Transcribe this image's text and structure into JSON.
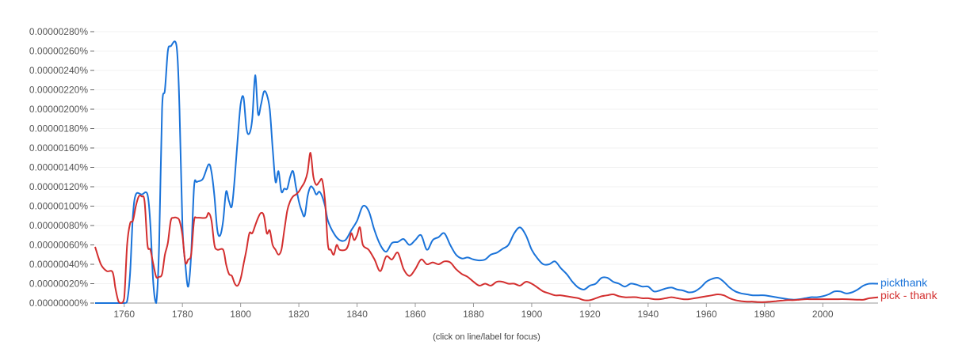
{
  "chart_data": {
    "type": "line",
    "title": "",
    "xlabel": "",
    "ylabel": "",
    "note": "(click on line/label for focus)",
    "xlim": [
      1750,
      2019
    ],
    "ylim": [
      0,
      2.8
    ],
    "y_value_unit_multiplier_percent": 1e-06,
    "grid": true,
    "legend_placement": "right, at line ends",
    "x_ticks": [
      1760,
      1780,
      1800,
      1820,
      1840,
      1860,
      1880,
      1900,
      1920,
      1940,
      1960,
      1980,
      2000
    ],
    "y_ticks": [
      0,
      0.2,
      0.4,
      0.6,
      0.8,
      1.0,
      1.2,
      1.4,
      1.6,
      1.8,
      2.0,
      2.2,
      2.4,
      2.6,
      2.8
    ],
    "y_tick_labels": [
      "0.00000000%",
      "0.00000020%",
      "0.00000040%",
      "0.00000060%",
      "0.00000080%",
      "0.00000100%",
      "0.00000120%",
      "0.00000140%",
      "0.00000160%",
      "0.00000180%",
      "0.00000200%",
      "0.00000220%",
      "0.00000240%",
      "0.00000260%",
      "0.00000280%"
    ],
    "series": [
      {
        "name": "pickthank",
        "color": "#1a73d9",
        "x": [
          1750,
          1755,
          1760,
          1761,
          1762,
          1763,
          1764,
          1766,
          1768,
          1769,
          1770,
          1771,
          1772,
          1773,
          1774,
          1775,
          1776,
          1778,
          1779,
          1780,
          1781,
          1782,
          1783,
          1784,
          1785,
          1787,
          1789,
          1790,
          1791,
          1792,
          1793,
          1794,
          1795,
          1796,
          1797,
          1798,
          1799,
          1800,
          1801,
          1802,
          1803,
          1804,
          1805,
          1806,
          1807,
          1808,
          1809,
          1810,
          1811,
          1812,
          1813,
          1814,
          1815,
          1816,
          1817,
          1818,
          1819,
          1820,
          1821,
          1822,
          1823,
          1824,
          1825,
          1826,
          1827,
          1828,
          1829,
          1830,
          1832,
          1834,
          1836,
          1838,
          1840,
          1842,
          1844,
          1846,
          1848,
          1850,
          1852,
          1854,
          1856,
          1858,
          1860,
          1862,
          1864,
          1866,
          1868,
          1870,
          1872,
          1874,
          1876,
          1878,
          1880,
          1882,
          1884,
          1886,
          1888,
          1890,
          1892,
          1894,
          1896,
          1898,
          1900,
          1902,
          1904,
          1906,
          1908,
          1910,
          1912,
          1914,
          1916,
          1918,
          1920,
          1922,
          1924,
          1926,
          1928,
          1930,
          1932,
          1934,
          1936,
          1938,
          1940,
          1942,
          1944,
          1946,
          1948,
          1950,
          1952,
          1954,
          1956,
          1958,
          1960,
          1962,
          1964,
          1966,
          1968,
          1970,
          1972,
          1974,
          1976,
          1978,
          1980,
          1982,
          1984,
          1986,
          1988,
          1990,
          1992,
          1994,
          1996,
          1998,
          2000,
          2002,
          2004,
          2006,
          2008,
          2010,
          2012,
          2014,
          2016,
          2019
        ],
        "values": [
          0,
          0,
          0,
          0.02,
          0.3,
          0.9,
          1.12,
          1.12,
          1.12,
          0.8,
          0.2,
          0,
          0.6,
          2.0,
          2.2,
          2.6,
          2.65,
          2.65,
          2.0,
          0.8,
          0.4,
          0.17,
          0.5,
          1.2,
          1.25,
          1.28,
          1.43,
          1.35,
          1.1,
          0.75,
          0.7,
          0.85,
          1.15,
          1.05,
          1.0,
          1.3,
          1.7,
          2.05,
          2.12,
          1.8,
          1.75,
          1.9,
          2.35,
          1.95,
          2.05,
          2.18,
          2.15,
          2.0,
          1.6,
          1.25,
          1.36,
          1.15,
          1.18,
          1.18,
          1.3,
          1.36,
          1.2,
          1.05,
          0.95,
          0.9,
          1.1,
          1.2,
          1.18,
          1.12,
          1.15,
          1.1,
          1.0,
          0.85,
          0.72,
          0.65,
          0.65,
          0.75,
          0.85,
          1.0,
          0.95,
          0.75,
          0.6,
          0.53,
          0.62,
          0.63,
          0.66,
          0.6,
          0.65,
          0.7,
          0.55,
          0.65,
          0.68,
          0.72,
          0.6,
          0.5,
          0.46,
          0.47,
          0.45,
          0.44,
          0.45,
          0.5,
          0.52,
          0.56,
          0.6,
          0.72,
          0.78,
          0.7,
          0.55,
          0.46,
          0.4,
          0.4,
          0.43,
          0.36,
          0.3,
          0.22,
          0.16,
          0.14,
          0.18,
          0.2,
          0.26,
          0.26,
          0.22,
          0.2,
          0.17,
          0.2,
          0.19,
          0.17,
          0.17,
          0.12,
          0.13,
          0.15,
          0.16,
          0.14,
          0.13,
          0.11,
          0.12,
          0.16,
          0.22,
          0.25,
          0.26,
          0.22,
          0.16,
          0.12,
          0.1,
          0.09,
          0.08,
          0.08,
          0.08,
          0.07,
          0.06,
          0.05,
          0.04,
          0.035,
          0.04,
          0.05,
          0.06,
          0.06,
          0.07,
          0.09,
          0.12,
          0.12,
          0.1,
          0.11,
          0.14,
          0.18,
          0.2,
          0.2
        ]
      },
      {
        "name": "pick - thank",
        "color": "#d32f2f",
        "x": [
          1750,
          1752,
          1754,
          1756,
          1757,
          1758,
          1759,
          1760,
          1761,
          1762,
          1763,
          1764,
          1765,
          1766,
          1767,
          1768,
          1769,
          1770,
          1771,
          1772,
          1773,
          1774,
          1775,
          1776,
          1777,
          1778,
          1779,
          1780,
          1781,
          1782,
          1783,
          1784,
          1785,
          1788,
          1789,
          1790,
          1791,
          1792,
          1794,
          1795,
          1796,
          1797,
          1798,
          1799,
          1800,
          1801,
          1802,
          1803,
          1804,
          1805,
          1806,
          1807,
          1808,
          1809,
          1810,
          1811,
          1812,
          1813,
          1814,
          1815,
          1816,
          1817,
          1818,
          1819,
          1820,
          1821,
          1822,
          1823,
          1824,
          1825,
          1826,
          1827,
          1828,
          1829,
          1830,
          1831,
          1832,
          1833,
          1834,
          1836,
          1837,
          1838,
          1839,
          1840,
          1841,
          1842,
          1844,
          1846,
          1848,
          1850,
          1852,
          1854,
          1856,
          1858,
          1860,
          1862,
          1864,
          1866,
          1868,
          1870,
          1872,
          1874,
          1876,
          1878,
          1880,
          1882,
          1884,
          1886,
          1888,
          1890,
          1892,
          1894,
          1896,
          1898,
          1900,
          1902,
          1904,
          1906,
          1908,
          1910,
          1912,
          1914,
          1916,
          1918,
          1920,
          1922,
          1924,
          1926,
          1928,
          1930,
          1932,
          1934,
          1936,
          1938,
          1940,
          1942,
          1944,
          1946,
          1948,
          1950,
          1952,
          1954,
          1956,
          1958,
          1960,
          1962,
          1964,
          1966,
          1968,
          1970,
          1972,
          1974,
          1976,
          1978,
          1980,
          1982,
          1984,
          1986,
          1988,
          1990,
          1992,
          1994,
          1996,
          1998,
          2000,
          2004,
          2008,
          2012,
          2014,
          2016,
          2019
        ],
        "values": [
          0.58,
          0.4,
          0.33,
          0.32,
          0.15,
          0.02,
          0,
          0.05,
          0.6,
          0.82,
          0.85,
          1.0,
          1.1,
          1.1,
          1.05,
          0.6,
          0.55,
          0.4,
          0.27,
          0.27,
          0.3,
          0.5,
          0.62,
          0.85,
          0.88,
          0.88,
          0.85,
          0.7,
          0.42,
          0.45,
          0.5,
          0.85,
          0.88,
          0.88,
          0.93,
          0.85,
          0.6,
          0.55,
          0.55,
          0.4,
          0.3,
          0.28,
          0.2,
          0.18,
          0.25,
          0.4,
          0.55,
          0.72,
          0.72,
          0.8,
          0.88,
          0.93,
          0.9,
          0.72,
          0.75,
          0.6,
          0.55,
          0.5,
          0.55,
          0.75,
          0.95,
          1.05,
          1.1,
          1.12,
          1.15,
          1.2,
          1.25,
          1.35,
          1.55,
          1.3,
          1.22,
          1.25,
          1.27,
          1.05,
          0.6,
          0.55,
          0.5,
          0.6,
          0.55,
          0.55,
          0.6,
          0.72,
          0.65,
          0.7,
          0.78,
          0.6,
          0.55,
          0.45,
          0.33,
          0.48,
          0.45,
          0.52,
          0.35,
          0.28,
          0.35,
          0.45,
          0.4,
          0.42,
          0.4,
          0.43,
          0.42,
          0.35,
          0.3,
          0.27,
          0.22,
          0.18,
          0.2,
          0.18,
          0.22,
          0.22,
          0.2,
          0.2,
          0.18,
          0.22,
          0.2,
          0.16,
          0.12,
          0.1,
          0.08,
          0.08,
          0.07,
          0.06,
          0.05,
          0.03,
          0.03,
          0.05,
          0.07,
          0.08,
          0.09,
          0.07,
          0.06,
          0.06,
          0.06,
          0.05,
          0.05,
          0.04,
          0.04,
          0.05,
          0.06,
          0.05,
          0.04,
          0.04,
          0.05,
          0.06,
          0.07,
          0.08,
          0.09,
          0.08,
          0.05,
          0.03,
          0.02,
          0.015,
          0.015,
          0.01,
          0.01,
          0.015,
          0.02,
          0.025,
          0.03,
          0.03,
          0.035,
          0.04,
          0.04,
          0.04,
          0.04,
          0.04,
          0.04,
          0.035,
          0.035,
          0.05,
          0.06
        ]
      }
    ]
  }
}
